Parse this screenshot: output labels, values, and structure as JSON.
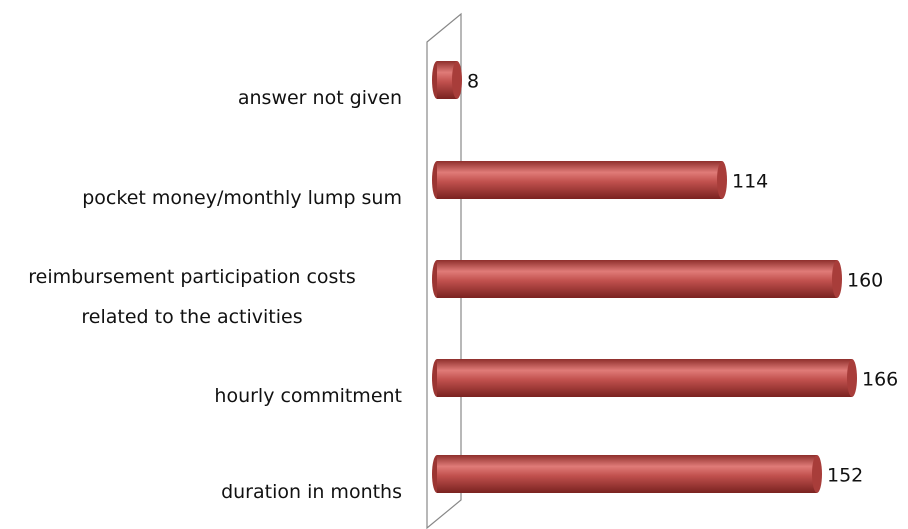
{
  "chart_data": {
    "type": "bar",
    "orientation": "horizontal",
    "categories": [
      "answer not given",
      "pocket money/monthly lump sum",
      "reimbursement participation costs\nrelated  to the activities",
      "hourly commitment",
      "duration in months"
    ],
    "values": [
      8,
      114,
      160,
      166,
      152
    ],
    "color": "#c0504d"
  }
}
